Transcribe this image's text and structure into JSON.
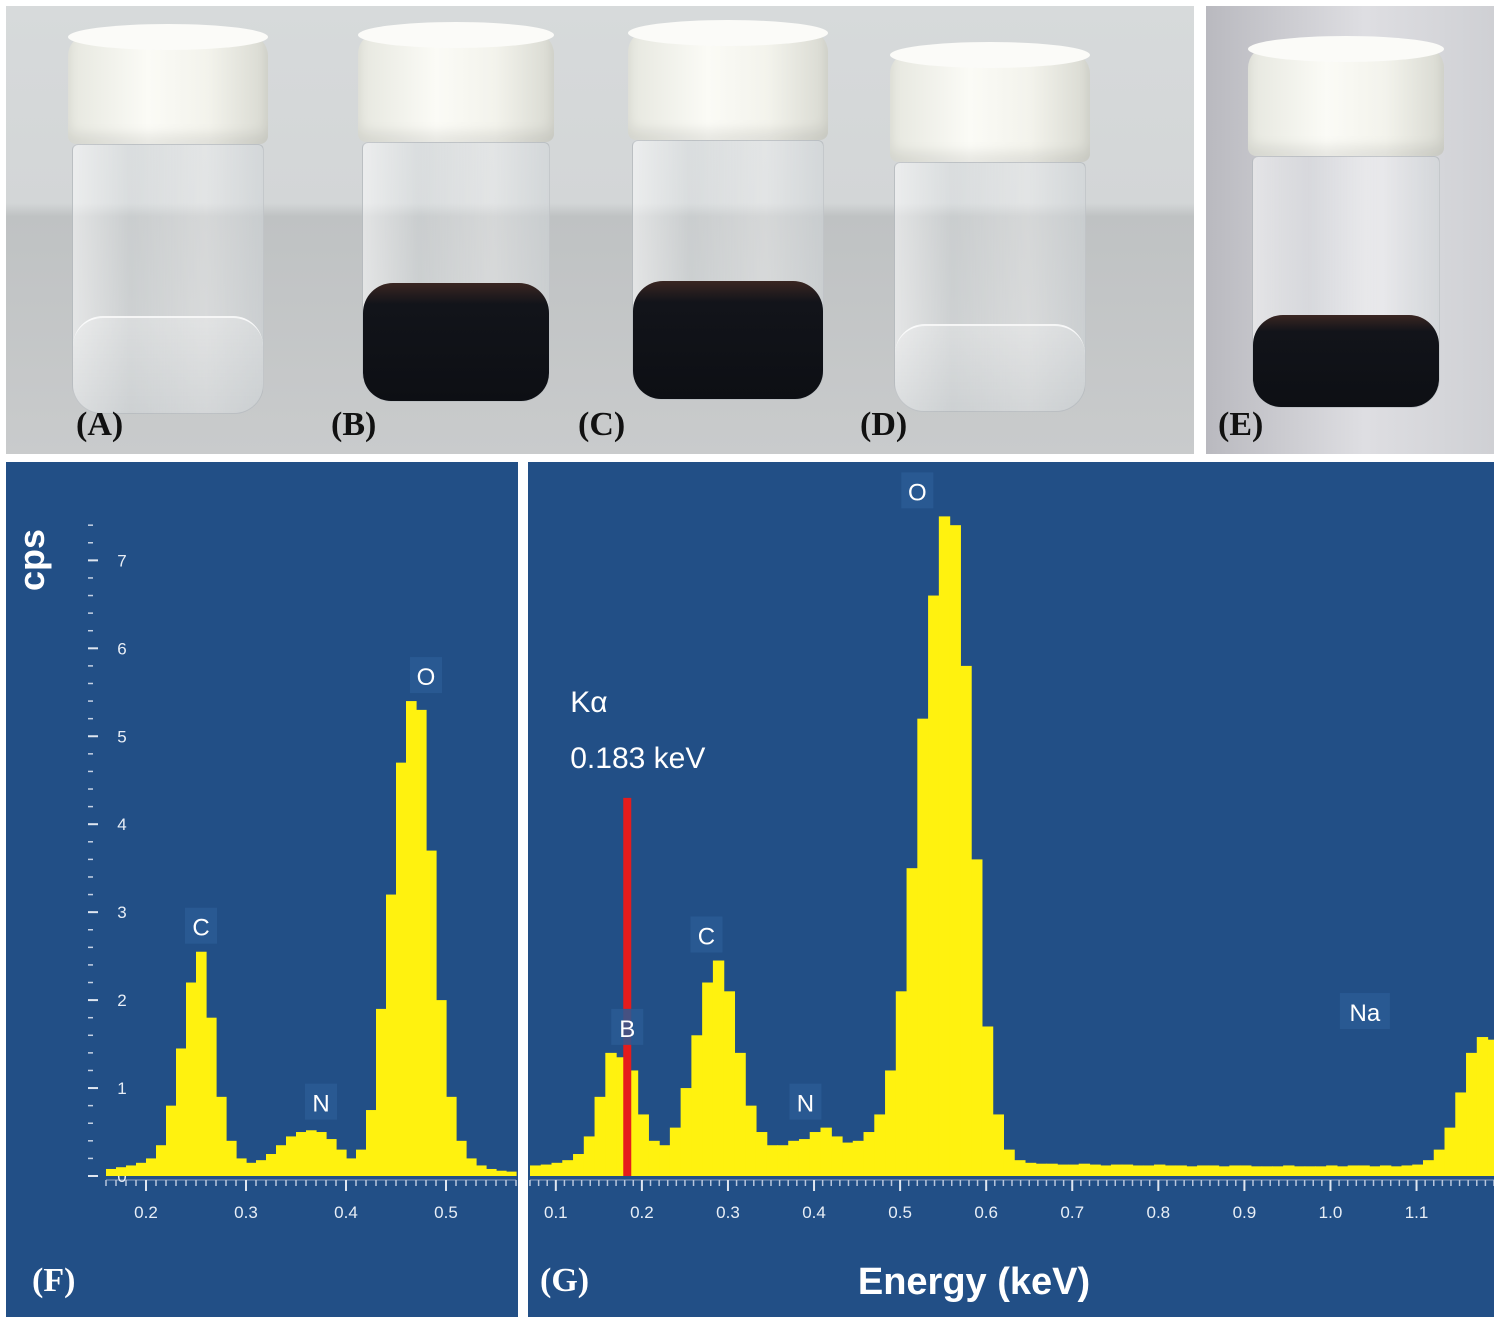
{
  "photos": {
    "labels": [
      "(A)",
      "(B)",
      "(C)",
      "(D)",
      "(E)"
    ],
    "vial_contents": [
      "clear",
      "dark",
      "dark",
      "clear",
      "dark"
    ]
  },
  "chart_data": [
    {
      "type": "bar",
      "panel_label": "(F)",
      "ylabel": "cps",
      "xlabel": "",
      "xlim": [
        0.16,
        0.57
      ],
      "ylim": [
        0,
        7.8
      ],
      "xticks": [
        "0.2",
        "0.3",
        "0.4",
        "0.5"
      ],
      "xtick_values": [
        0.2,
        0.3,
        0.4,
        0.5
      ],
      "yticks": [
        "0",
        "1",
        "2",
        "3",
        "4",
        "5",
        "6",
        "7"
      ],
      "ytick_values": [
        0,
        1,
        2,
        3,
        4,
        5,
        6,
        7
      ],
      "bin_width": 0.01,
      "x": [
        0.16,
        0.17,
        0.18,
        0.19,
        0.2,
        0.21,
        0.22,
        0.23,
        0.24,
        0.25,
        0.26,
        0.27,
        0.28,
        0.29,
        0.3,
        0.31,
        0.32,
        0.33,
        0.34,
        0.35,
        0.36,
        0.37,
        0.38,
        0.39,
        0.4,
        0.41,
        0.42,
        0.43,
        0.44,
        0.45,
        0.46,
        0.47,
        0.48,
        0.49,
        0.5,
        0.51,
        0.52,
        0.53,
        0.54,
        0.55,
        0.56
      ],
      "values": [
        0.08,
        0.1,
        0.12,
        0.15,
        0.2,
        0.35,
        0.8,
        1.45,
        2.2,
        2.55,
        1.8,
        0.9,
        0.4,
        0.2,
        0.15,
        0.18,
        0.25,
        0.35,
        0.45,
        0.5,
        0.52,
        0.5,
        0.42,
        0.3,
        0.2,
        0.3,
        0.75,
        1.9,
        3.2,
        4.7,
        5.4,
        5.3,
        3.7,
        2.0,
        0.9,
        0.4,
        0.2,
        0.12,
        0.08,
        0.06,
        0.05
      ],
      "peaks": [
        {
          "label": "C",
          "x": 0.255,
          "y": 2.55
        },
        {
          "label": "N",
          "x": 0.375,
          "y": 0.55
        },
        {
          "label": "O",
          "x": 0.48,
          "y": 5.4
        }
      ],
      "bar_color": "#fff20f",
      "background": "#224f86"
    },
    {
      "type": "bar",
      "panel_label": "(G)",
      "xlabel": "Energy (keV)",
      "ylabel": "",
      "xlim": [
        0.07,
        1.19
      ],
      "ylim": [
        0,
        7.8
      ],
      "xticks": [
        "0.1",
        "0.2",
        "0.3",
        "0.4",
        "0.5",
        "0.6",
        "0.7",
        "0.8",
        "0.9",
        "1.0",
        "1.1"
      ],
      "xtick_values": [
        0.1,
        0.2,
        0.3,
        0.4,
        0.5,
        0.6,
        0.7,
        0.8,
        0.9,
        1.0,
        1.1
      ],
      "bin_width": 0.0125,
      "x": [
        0.07,
        0.0825,
        0.095,
        0.1075,
        0.12,
        0.1325,
        0.145,
        0.1575,
        0.17,
        0.1825,
        0.195,
        0.2075,
        0.22,
        0.2325,
        0.245,
        0.2575,
        0.27,
        0.2825,
        0.295,
        0.3075,
        0.32,
        0.3325,
        0.345,
        0.3575,
        0.37,
        0.3825,
        0.395,
        0.4075,
        0.42,
        0.4325,
        0.445,
        0.4575,
        0.47,
        0.4825,
        0.495,
        0.5075,
        0.52,
        0.5325,
        0.545,
        0.5575,
        0.57,
        0.5825,
        0.595,
        0.6075,
        0.62,
        0.6325,
        0.645,
        0.6575,
        0.67,
        0.6825,
        0.695,
        0.7075,
        0.72,
        0.7325,
        0.745,
        0.7575,
        0.77,
        0.7825,
        0.795,
        0.8075,
        0.82,
        0.8325,
        0.845,
        0.8575,
        0.87,
        0.8825,
        0.895,
        0.9075,
        0.92,
        0.9325,
        0.945,
        0.9575,
        0.97,
        0.9825,
        0.995,
        1.0075,
        1.02,
        1.0325,
        1.045,
        1.0575,
        1.07,
        1.0825,
        1.095,
        1.1075,
        1.12,
        1.1325,
        1.145,
        1.1575,
        1.17,
        1.1825
      ],
      "values": [
        0.12,
        0.13,
        0.15,
        0.18,
        0.25,
        0.45,
        0.9,
        1.4,
        1.35,
        1.2,
        0.7,
        0.4,
        0.35,
        0.55,
        1.0,
        1.6,
        2.2,
        2.45,
        2.1,
        1.4,
        0.8,
        0.5,
        0.35,
        0.35,
        0.4,
        0.42,
        0.5,
        0.55,
        0.45,
        0.38,
        0.4,
        0.5,
        0.7,
        1.2,
        2.1,
        3.5,
        5.2,
        6.6,
        7.5,
        7.4,
        5.8,
        3.6,
        1.7,
        0.7,
        0.3,
        0.18,
        0.15,
        0.14,
        0.14,
        0.13,
        0.13,
        0.14,
        0.13,
        0.12,
        0.13,
        0.13,
        0.12,
        0.12,
        0.13,
        0.12,
        0.12,
        0.11,
        0.12,
        0.12,
        0.11,
        0.12,
        0.12,
        0.11,
        0.11,
        0.11,
        0.12,
        0.11,
        0.11,
        0.11,
        0.12,
        0.11,
        0.12,
        0.12,
        0.11,
        0.12,
        0.11,
        0.12,
        0.13,
        0.18,
        0.3,
        0.55,
        0.95,
        1.4,
        1.58,
        1.55
      ],
      "peaks": [
        {
          "label": "B",
          "x": 0.183,
          "y": 1.4
        },
        {
          "label": "C",
          "x": 0.275,
          "y": 2.45
        },
        {
          "label": "N",
          "x": 0.39,
          "y": 0.55
        },
        {
          "label": "O",
          "x": 0.52,
          "y": 7.5
        },
        {
          "label": "Na",
          "x": 1.04,
          "y": 1.58
        }
      ],
      "marker": {
        "line1": "Kα",
        "line2": "0.183 keV",
        "x": 0.183,
        "y_top": 4.3,
        "color": "#e51c1c"
      },
      "bar_color": "#fff20f",
      "background": "#224f86"
    }
  ]
}
